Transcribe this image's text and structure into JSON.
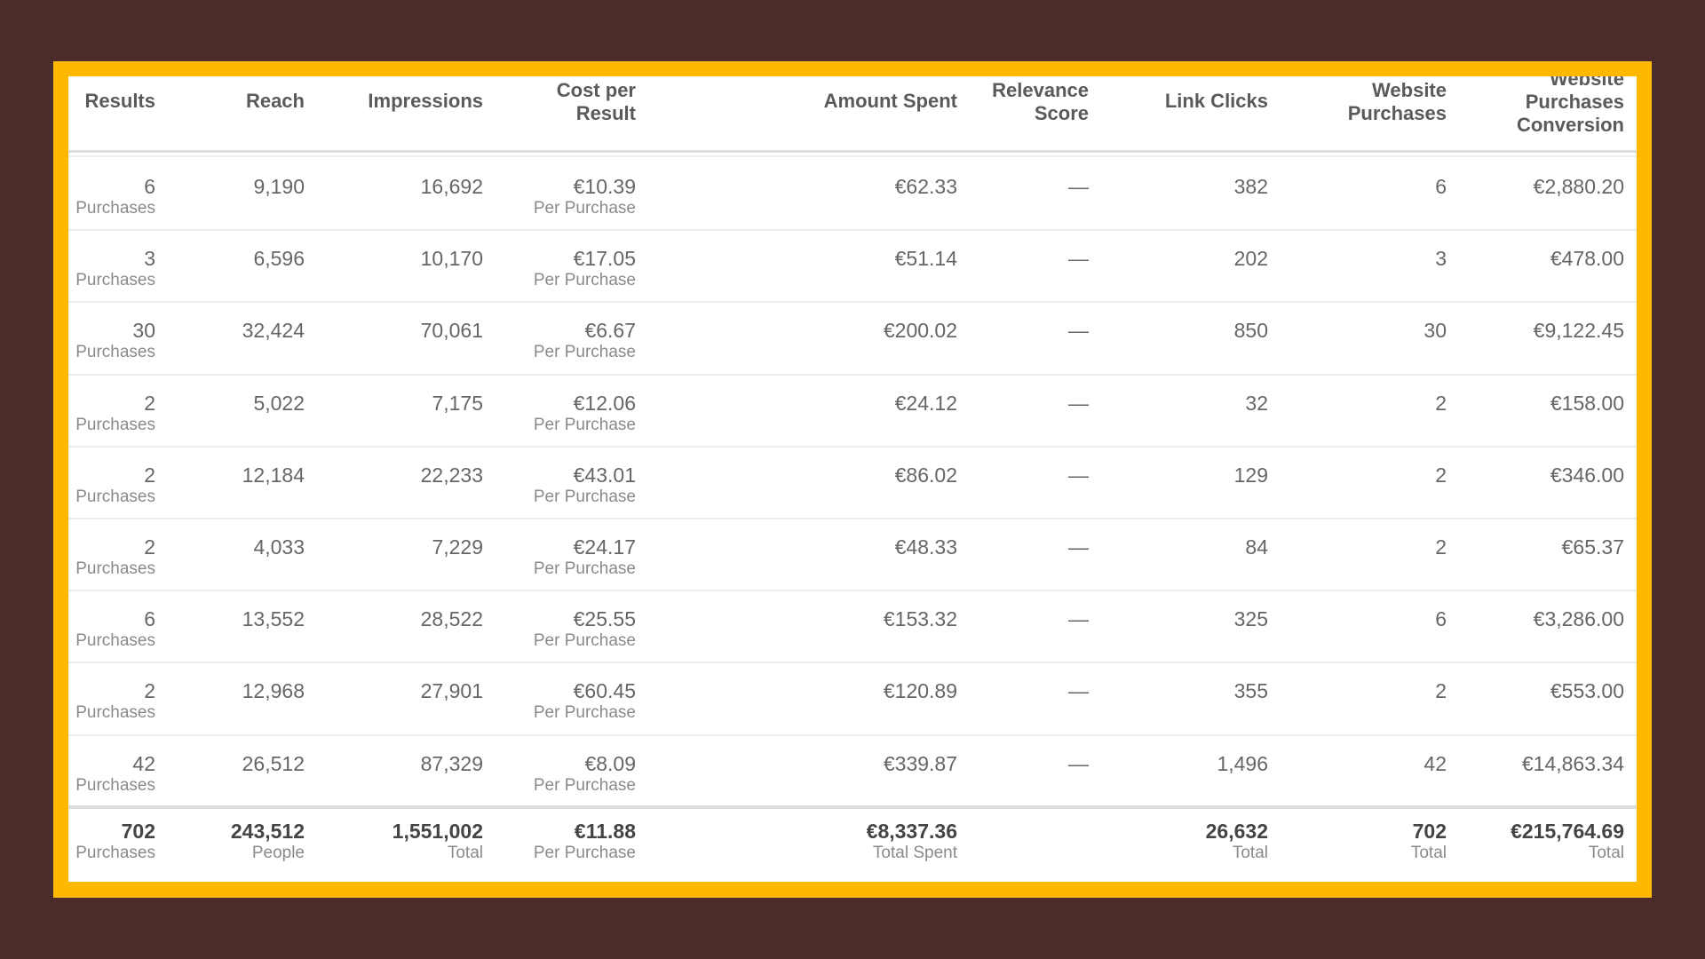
{
  "colors": {
    "background": "#4a2c2b",
    "border": "#ffb800",
    "panel": "#ffffff"
  },
  "columns": [
    {
      "label_lines": [
        "Results"
      ]
    },
    {
      "label_lines": [
        "Reach"
      ]
    },
    {
      "label_lines": [
        "Impressions"
      ]
    },
    {
      "label_lines": [
        "Cost per",
        "Result"
      ]
    },
    {
      "label_lines": [
        "Amount Spent"
      ]
    },
    {
      "label_lines": [
        "Relevance",
        "Score"
      ]
    },
    {
      "label_lines": [
        "Link Clicks"
      ]
    },
    {
      "label_lines": [
        "Website",
        "Purchases"
      ]
    },
    {
      "label_lines": [
        "Website",
        "Purchases",
        "Conversion"
      ]
    }
  ],
  "rows": [
    {
      "results": "6",
      "results_sub": "Purchases",
      "reach": "9,190",
      "impressions": "16,692",
      "cost": "€10.39",
      "cost_sub": "Per Purchase",
      "amount": "€62.33",
      "relevance": "—",
      "clicks": "382",
      "purchases": "6",
      "conversion": "€2,880.20"
    },
    {
      "results": "3",
      "results_sub": "Purchases",
      "reach": "6,596",
      "impressions": "10,170",
      "cost": "€17.05",
      "cost_sub": "Per Purchase",
      "amount": "€51.14",
      "relevance": "—",
      "clicks": "202",
      "purchases": "3",
      "conversion": "€478.00"
    },
    {
      "results": "30",
      "results_sub": "Purchases",
      "reach": "32,424",
      "impressions": "70,061",
      "cost": "€6.67",
      "cost_sub": "Per Purchase",
      "amount": "€200.02",
      "relevance": "—",
      "clicks": "850",
      "purchases": "30",
      "conversion": "€9,122.45"
    },
    {
      "results": "2",
      "results_sub": "Purchases",
      "reach": "5,022",
      "impressions": "7,175",
      "cost": "€12.06",
      "cost_sub": "Per Purchase",
      "amount": "€24.12",
      "relevance": "—",
      "clicks": "32",
      "purchases": "2",
      "conversion": "€158.00"
    },
    {
      "results": "2",
      "results_sub": "Purchases",
      "reach": "12,184",
      "impressions": "22,233",
      "cost": "€43.01",
      "cost_sub": "Per Purchase",
      "amount": "€86.02",
      "relevance": "—",
      "clicks": "129",
      "purchases": "2",
      "conversion": "€346.00"
    },
    {
      "results": "2",
      "results_sub": "Purchases",
      "reach": "4,033",
      "impressions": "7,229",
      "cost": "€24.17",
      "cost_sub": "Per Purchase",
      "amount": "€48.33",
      "relevance": "—",
      "clicks": "84",
      "purchases": "2",
      "conversion": "€65.37"
    },
    {
      "results": "6",
      "results_sub": "Purchases",
      "reach": "13,552",
      "impressions": "28,522",
      "cost": "€25.55",
      "cost_sub": "Per Purchase",
      "amount": "€153.32",
      "relevance": "—",
      "clicks": "325",
      "purchases": "6",
      "conversion": "€3,286.00"
    },
    {
      "results": "2",
      "results_sub": "Purchases",
      "reach": "12,968",
      "impressions": "27,901",
      "cost": "€60.45",
      "cost_sub": "Per Purchase",
      "amount": "€120.89",
      "relevance": "—",
      "clicks": "355",
      "purchases": "2",
      "conversion": "€553.00"
    },
    {
      "results": "42",
      "results_sub": "Purchases",
      "reach": "26,512",
      "impressions": "87,329",
      "cost": "€8.09",
      "cost_sub": "Per Purchase",
      "amount": "€339.87",
      "relevance": "—",
      "clicks": "1,496",
      "purchases": "42",
      "conversion": "€14,863.34"
    }
  ],
  "totals": {
    "results": "702",
    "results_sub": "Purchases",
    "reach": "243,512",
    "reach_sub": "People",
    "impressions": "1,551,002",
    "impressions_sub": "Total",
    "cost": "€11.88",
    "cost_sub": "Per Purchase",
    "amount": "€8,337.36",
    "amount_sub": "Total Spent",
    "clicks": "26,632",
    "clicks_sub": "Total",
    "purchases": "702",
    "purchases_sub": "Total",
    "conversion": "€215,764.69",
    "conversion_sub": "Total"
  }
}
